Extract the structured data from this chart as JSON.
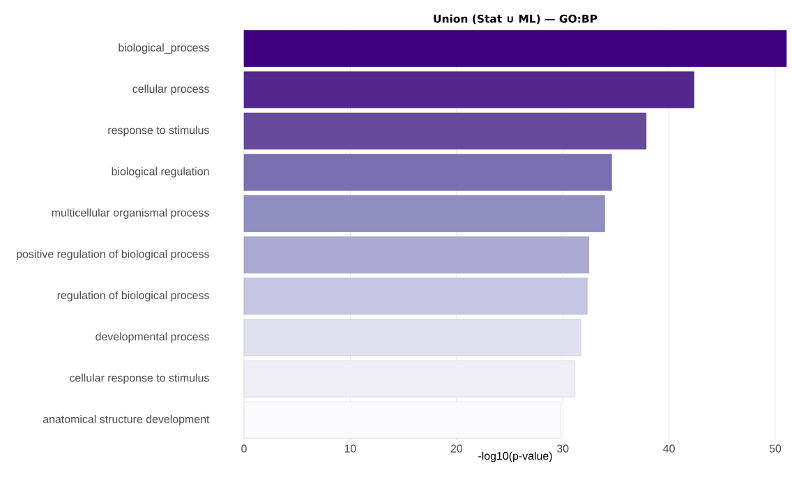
{
  "chart_data": {
    "type": "bar",
    "orientation": "horizontal",
    "title": "Union (Stat ∪ ML) — GO:BP",
    "xlabel": "-log10(p-value)",
    "categories": [
      "biological_process",
      "cellular process",
      "response to stimulus",
      "biological regulation",
      "multicellular organismal process",
      "positive regulation of biological process",
      "regulation of biological process",
      "developmental process",
      "cellular response to stimulus",
      "anatomical structure development"
    ],
    "values": [
      51.05,
      42.35,
      37.85,
      34.6,
      33.95,
      32.45,
      32.3,
      31.7,
      31.15,
      29.8
    ],
    "colors": [
      "#3f007d",
      "#54278f",
      "#674a9b",
      "#7a6fb0",
      "#918ec2",
      "#aca9d1",
      "#c6c6e3",
      "#e0e0ee",
      "#efedf5",
      "#fbfafd"
    ],
    "xlim": [
      0,
      51.05
    ],
    "xticks": [
      0,
      10,
      20,
      30,
      40,
      50
    ],
    "grid": "x"
  }
}
